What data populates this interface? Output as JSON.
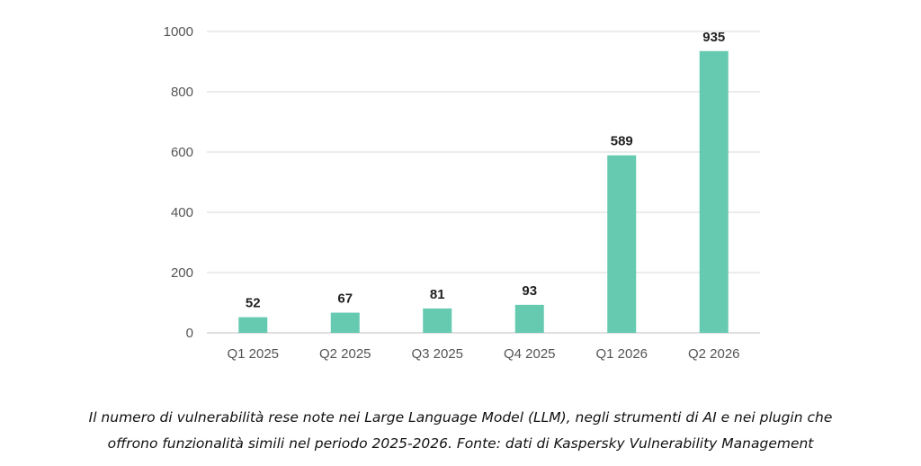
{
  "chart_data": {
    "type": "bar",
    "categories": [
      "Q1 2025",
      "Q2 2025",
      "Q3 2025",
      "Q4 2025",
      "Q1 2026",
      "Q2 2026"
    ],
    "values": [
      52,
      67,
      81,
      93,
      589,
      935
    ],
    "data_labels": [
      "52",
      "67",
      "81",
      "93",
      "589",
      "935"
    ],
    "yticks": [
      0,
      200,
      400,
      600,
      800,
      1000
    ],
    "ylim": [
      0,
      1000
    ],
    "grid": true,
    "bar_color": "#66cab1",
    "grid_color": "#d9d9d9"
  },
  "caption": {
    "line1": "Il numero di vulnerabilità rese note nei Large Language Model (LLM), negli strumenti di AI e nei plugin che",
    "line2": "offrono funzionalità simili nel periodo 2025-2026. Fonte: dati di Kaspersky Vulnerability Management"
  }
}
